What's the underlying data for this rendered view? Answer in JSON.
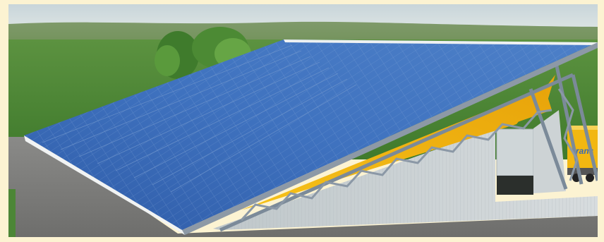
{
  "image": {
    "subject": "solar-roof-hall-rendering",
    "truck_lettering": "trans"
  },
  "colors": {
    "border": "#fcf3d2",
    "sky": "#cfdadd",
    "grass": "#4f8a35",
    "panel": "#3a69b4",
    "steel": "#7b8a99",
    "yellow_wall": "#f2b711",
    "cladding": "#c9d0d3",
    "asphalt": "#7a7a7a"
  }
}
